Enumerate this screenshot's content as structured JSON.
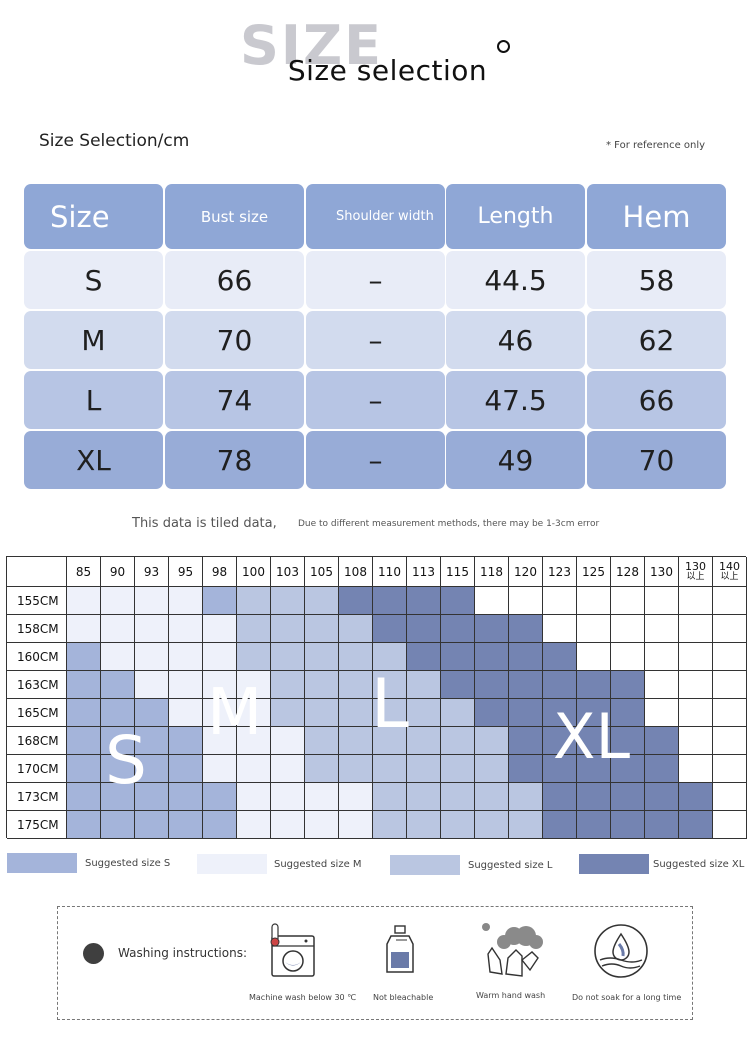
{
  "header": {
    "background_word": "SIZE",
    "title": "Size selection",
    "subtitle": "Size Selection/cm",
    "reference_note": "* For reference only"
  },
  "size_table": {
    "headers": [
      "Size",
      "Bust size",
      "Shoulder width",
      "Length",
      "Hem"
    ],
    "rows": [
      [
        "S",
        "66",
        "–",
        "44.5",
        "58"
      ],
      [
        "M",
        "70",
        "–",
        "46",
        "62"
      ],
      [
        "L",
        "74",
        "–",
        "47.5",
        "66"
      ],
      [
        "XL",
        "78",
        "–",
        "49",
        "70"
      ]
    ]
  },
  "notes": {
    "tiled": "This data is tiled data,",
    "error": "Due to different measurement methods, there may be 1-3cm error"
  },
  "size_grid": {
    "weights": [
      "85",
      "90",
      "93",
      "95",
      "98",
      "100",
      "103",
      "105",
      "108",
      "110",
      "113",
      "115",
      "118",
      "120",
      "123",
      "125",
      "128",
      "130",
      "130以上",
      "140以上"
    ],
    "heights": [
      "155CM",
      "158CM",
      "160CM",
      "163CM",
      "165CM",
      "168CM",
      "170CM",
      "173CM",
      "175CM"
    ],
    "cells": [
      "MMMMSLLLXXXX________",
      "MMMMMLLLLXXXXX______",
      "SMMMMLLLLLXXXXX_____",
      "SSMMMMLLLLLXXXXXX___",
      "SSSMMMLLLLLLXXXXX___",
      "SSSSMMMLLLLLLXXXXX__",
      "SSSSMMMLLLLLLXXXXX__",
      "SSSSSMMMMLLLLLXXXXX_",
      "SSSSSMMMMLLLLLXXXXX_"
    ],
    "zone_labels": [
      "S",
      "M",
      "L",
      "XL"
    ]
  },
  "legend": [
    {
      "label": "Suggested size S",
      "color": "#a4b4da"
    },
    {
      "label": "Suggested size M",
      "color": "#eef1fa"
    },
    {
      "label": "Suggested size L",
      "color": "#bac6e1"
    },
    {
      "label": "Suggested size XL",
      "color": "#7484b2"
    }
  ],
  "washing": {
    "label": "Washing instructions:",
    "items": [
      {
        "caption": "Machine wash below 30 ℃",
        "icon": "washing-machine-icon"
      },
      {
        "caption": "Not bleachable",
        "icon": "bleach-bottle-icon"
      },
      {
        "caption": "Warm hand wash",
        "icon": "hand-wash-icon"
      },
      {
        "caption": "Do not soak for a long time",
        "icon": "no-soak-icon"
      }
    ]
  },
  "colors": {
    "header_cell": "#8fa7d6",
    "row_s": "#e8ecf7",
    "row_m": "#d2dbee",
    "row_l": "#b7c5e4",
    "row_xl": "#98acd7"
  }
}
